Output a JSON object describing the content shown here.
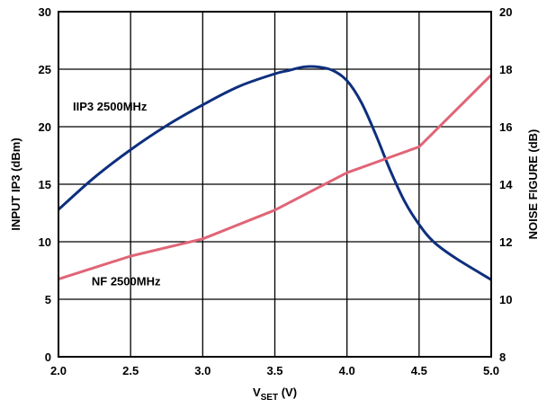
{
  "chart_data": {
    "type": "line",
    "xlabel_main": "V",
    "xlabel_sub": "SET",
    "xlabel_unit": " (V)",
    "ylabel_left": "INPUT IP3 (dBm)",
    "ylabel_right": "NOISE FIGURE (dB)",
    "xlim": [
      2.0,
      5.0
    ],
    "ylim_left": [
      0,
      30
    ],
    "ylim_right": [
      8,
      20
    ],
    "x_ticks": [
      "2.0",
      "2.5",
      "3.0",
      "3.5",
      "4.0",
      "4.5",
      "5.0"
    ],
    "y_ticks_left": [
      "0",
      "5",
      "10",
      "15",
      "20",
      "25",
      "30"
    ],
    "y_ticks_right": [
      "8",
      "10",
      "12",
      "14",
      "16",
      "18",
      "20"
    ],
    "grid": true,
    "series": [
      {
        "name": "IIP3 2500MHz",
        "axis": "left",
        "color": "#0e2f7e",
        "x": [
          2.0,
          2.25,
          2.5,
          2.75,
          3.0,
          3.25,
          3.5,
          3.6,
          3.7,
          3.8,
          3.9,
          4.0,
          4.1,
          4.2,
          4.3,
          4.4,
          4.5,
          4.6,
          4.75,
          5.0
        ],
        "y": [
          12.8,
          15.6,
          18.0,
          20.1,
          21.9,
          23.5,
          24.6,
          24.9,
          25.2,
          25.2,
          24.9,
          24.0,
          22.1,
          19.3,
          16.2,
          13.5,
          11.5,
          10.0,
          8.6,
          6.7
        ]
      },
      {
        "name": "NF 2500MHz",
        "axis": "right",
        "color": "#e06577",
        "x": [
          2.0,
          2.5,
          3.0,
          3.5,
          4.0,
          4.5,
          5.0
        ],
        "y": [
          10.7,
          11.5,
          12.1,
          13.1,
          14.4,
          15.3,
          17.8
        ]
      }
    ]
  }
}
